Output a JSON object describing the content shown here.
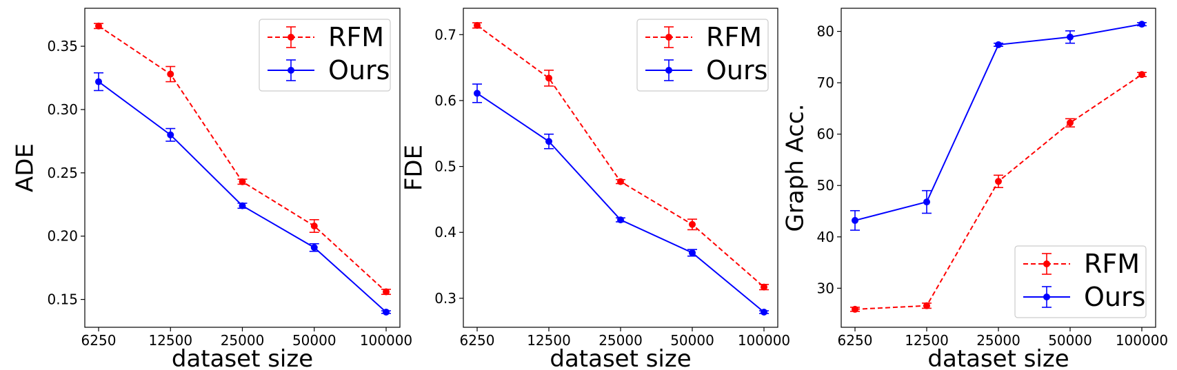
{
  "chart_data": [
    {
      "type": "line",
      "title": "",
      "xlabel": "dataset size",
      "ylabel": "ADE",
      "categories": [
        "6250",
        "12500",
        "25000",
        "50000",
        "100000"
      ],
      "ylim": [
        0.128,
        0.38
      ],
      "yticks": [
        "0.15",
        "0.20",
        "0.25",
        "0.30",
        "0.35"
      ],
      "legend_position": "top-right",
      "series": [
        {
          "name": "RFM",
          "color": "#ff0000",
          "style": "dashed",
          "values": [
            0.366,
            0.328,
            0.243,
            0.208,
            0.156
          ],
          "errors": [
            0.002,
            0.006,
            0.002,
            0.005,
            0.002
          ]
        },
        {
          "name": "Ours",
          "color": "#0000ff",
          "style": "solid",
          "values": [
            0.322,
            0.28,
            0.224,
            0.191,
            0.14
          ],
          "errors": [
            0.007,
            0.005,
            0.002,
            0.003,
            0.001
          ]
        }
      ]
    },
    {
      "type": "line",
      "title": "",
      "xlabel": "dataset size",
      "ylabel": "FDE",
      "categories": [
        "6250",
        "12500",
        "25000",
        "50000",
        "100000"
      ],
      "ylim": [
        0.256,
        0.74
      ],
      "yticks": [
        "0.3",
        "0.4",
        "0.5",
        "0.6",
        "0.7"
      ],
      "legend_position": "top-right",
      "series": [
        {
          "name": "RFM",
          "color": "#ff0000",
          "style": "dashed",
          "values": [
            0.714,
            0.634,
            0.477,
            0.412,
            0.317
          ],
          "errors": [
            0.004,
            0.012,
            0.003,
            0.008,
            0.004
          ]
        },
        {
          "name": "Ours",
          "color": "#0000ff",
          "style": "solid",
          "values": [
            0.611,
            0.538,
            0.419,
            0.369,
            0.279
          ],
          "errors": [
            0.014,
            0.011,
            0.003,
            0.005,
            0.002
          ]
        }
      ]
    },
    {
      "type": "line",
      "title": "",
      "xlabel": "dataset size",
      "ylabel": "Graph Acc.",
      "categories": [
        "6250",
        "12500",
        "25000",
        "50000",
        "100000"
      ],
      "ylim": [
        22.4,
        84.5
      ],
      "yticks": [
        "30",
        "40",
        "50",
        "60",
        "70",
        "80"
      ],
      "legend_position": "bottom-right",
      "series": [
        {
          "name": "RFM",
          "color": "#ff0000",
          "style": "dashed",
          "values": [
            25.9,
            26.6,
            50.8,
            62.2,
            71.6
          ],
          "errors": [
            0.4,
            0.5,
            1.2,
            0.8,
            0.4
          ]
        },
        {
          "name": "Ours",
          "color": "#0000ff",
          "style": "solid",
          "values": [
            43.2,
            46.8,
            77.4,
            78.9,
            81.4
          ],
          "errors": [
            1.9,
            2.2,
            0.3,
            1.2,
            0.3
          ]
        }
      ]
    }
  ]
}
